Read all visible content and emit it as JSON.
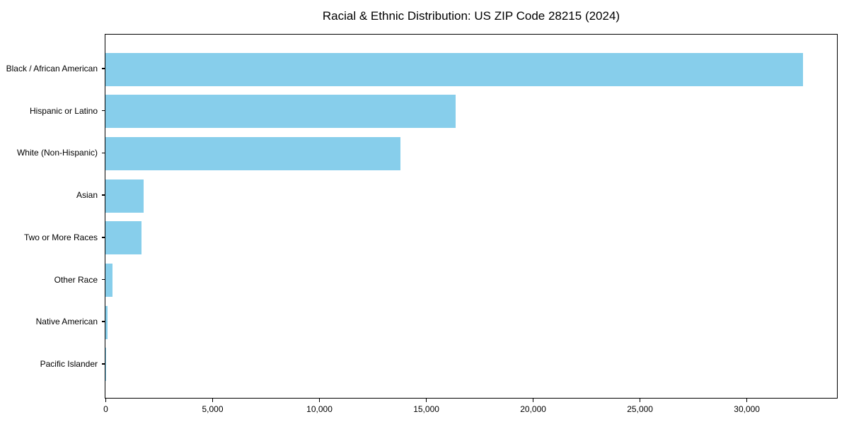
{
  "title": "Racial & Ethnic Distribution: US ZIP Code 28215 (2024)",
  "chart_data": {
    "type": "bar",
    "orientation": "horizontal",
    "title": "Racial & Ethnic Distribution: US ZIP Code 28215 (2024)",
    "categories": [
      "Black / African American",
      "Hispanic or Latino",
      "White (Non-Hispanic)",
      "Asian",
      "Two or More Races",
      "Other Race",
      "Native American",
      "Pacific Islander"
    ],
    "values": [
      32650,
      16400,
      13820,
      1800,
      1700,
      330,
      100,
      20
    ],
    "xlabel": "",
    "ylabel": "",
    "xlim": [
      0,
      34200
    ],
    "x_ticks": [
      0,
      5000,
      10000,
      15000,
      20000,
      25000,
      30000
    ],
    "x_tick_labels": [
      "0",
      "5,000",
      "10,000",
      "15,000",
      "20,000",
      "25,000",
      "30,000"
    ],
    "grid": false,
    "legend": null,
    "bar_color": "#87CEEB",
    "background_color": "#ffffff",
    "text_color": "#000000"
  }
}
